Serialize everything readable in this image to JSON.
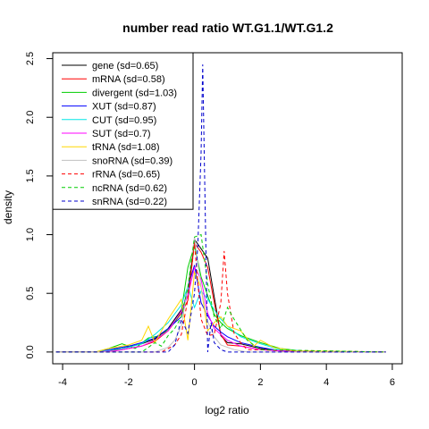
{
  "chart_data": {
    "type": "line",
    "title": "number read ratio WT.G1.1/WT.G1.2",
    "xlabel": "log2 ratio",
    "ylabel": "density",
    "xlim": [
      -4.3,
      6.3
    ],
    "ylim": [
      -0.1,
      2.55
    ],
    "xticks": [
      -4,
      -2,
      0,
      2,
      4,
      6
    ],
    "yticks": [
      0.0,
      0.5,
      1.0,
      1.5,
      2.0,
      2.5
    ],
    "xtick_labels": [
      "-4",
      "-2",
      "0",
      "2",
      "4",
      "6"
    ],
    "ytick_labels": [
      "0.0",
      "0.5",
      "1.0",
      "1.5",
      "2.0",
      "2.5"
    ],
    "grid": false,
    "legend_position": "top-left",
    "series": [
      {
        "name": "gene (sd=0.65)",
        "color": "#000000",
        "dash": "solid",
        "x": [
          -4.2,
          -3.0,
          -2.2,
          -1.6,
          -1.2,
          -0.8,
          -0.4,
          -0.2,
          0.0,
          0.2,
          0.4,
          0.6,
          0.8,
          1.0,
          1.4,
          2.0,
          2.6,
          4.0,
          5.8
        ],
        "y": [
          0,
          0,
          0.03,
          0.07,
          0.11,
          0.2,
          0.36,
          0.48,
          0.96,
          0.88,
          0.8,
          0.47,
          0.14,
          0.08,
          0.07,
          0.03,
          0.01,
          0,
          0
        ]
      },
      {
        "name": "mRNA (sd=0.58)",
        "color": "#ff0000",
        "dash": "solid",
        "x": [
          -4.2,
          -3.0,
          -2.2,
          -1.6,
          -1.2,
          -0.8,
          -0.4,
          -0.2,
          0.0,
          0.2,
          0.4,
          0.6,
          0.8,
          1.0,
          1.4,
          2.0,
          2.6,
          4.0,
          5.8
        ],
        "y": [
          0,
          0,
          0.02,
          0.05,
          0.09,
          0.18,
          0.33,
          0.44,
          0.93,
          0.85,
          0.72,
          0.42,
          0.15,
          0.06,
          0.05,
          0.02,
          0.01,
          0,
          0
        ]
      },
      {
        "name": "divergent (sd=1.03)",
        "color": "#00cd00",
        "dash": "solid",
        "x": [
          -4.2,
          -3.0,
          -2.6,
          -2.2,
          -1.8,
          -1.4,
          -1.0,
          -0.6,
          -0.4,
          -0.2,
          0.0,
          0.2,
          0.4,
          0.6,
          0.8,
          1.0,
          1.4,
          2.0,
          2.6,
          3.2,
          5.8
        ],
        "y": [
          0,
          0,
          0.03,
          0.07,
          0.03,
          0.12,
          0.14,
          0.25,
          0.35,
          0.72,
          0.91,
          0.64,
          0.48,
          0.32,
          0.25,
          0.2,
          0.14,
          0.08,
          0.03,
          0.01,
          0
        ]
      },
      {
        "name": "XUT (sd=0.87)",
        "color": "#0000ff",
        "dash": "solid",
        "x": [
          -4.2,
          -3.0,
          -2.4,
          -2.0,
          -1.6,
          -1.2,
          -0.8,
          -0.4,
          -0.2,
          0.0,
          0.2,
          0.4,
          0.6,
          0.8,
          1.0,
          1.4,
          2.0,
          2.6,
          4.0,
          5.8
        ],
        "y": [
          0,
          0,
          0.03,
          0.05,
          0.08,
          0.12,
          0.2,
          0.3,
          0.55,
          0.74,
          0.42,
          0.31,
          0.22,
          0.17,
          0.13,
          0.08,
          0.04,
          0.01,
          0,
          0
        ]
      },
      {
        "name": "CUT (sd=0.95)",
        "color": "#00e5e5",
        "dash": "solid",
        "x": [
          -4.2,
          -3.0,
          -2.4,
          -2.0,
          -1.6,
          -1.2,
          -0.8,
          -0.4,
          -0.2,
          0.0,
          0.2,
          0.4,
          0.6,
          0.8,
          1.0,
          1.4,
          2.0,
          2.6,
          4.0,
          5.8
        ],
        "y": [
          0,
          0,
          0.02,
          0.04,
          0.07,
          0.15,
          0.25,
          0.4,
          0.56,
          0.38,
          0.52,
          0.45,
          0.36,
          0.28,
          0.22,
          0.13,
          0.07,
          0.02,
          0,
          0
        ]
      },
      {
        "name": "SUT (sd=0.7)",
        "color": "#ff00ff",
        "dash": "solid",
        "x": [
          -4.2,
          -3.0,
          -2.4,
          -2.0,
          -1.6,
          -1.2,
          -0.8,
          -0.4,
          -0.2,
          0.0,
          0.2,
          0.4,
          0.6,
          0.8,
          1.0,
          1.4,
          2.0,
          2.6,
          4.0,
          5.8
        ],
        "y": [
          0,
          0,
          0.01,
          0.03,
          0.05,
          0.1,
          0.18,
          0.35,
          0.48,
          0.72,
          0.62,
          0.33,
          0.2,
          0.15,
          0.1,
          0.05,
          0.02,
          0.01,
          0,
          0
        ]
      },
      {
        "name": "tRNA (sd=1.08)",
        "color": "#ffd700",
        "dash": "solid",
        "x": [
          -4.2,
          -3.0,
          -2.6,
          -2.0,
          -1.6,
          -1.4,
          -1.2,
          -0.8,
          -0.4,
          -0.2,
          0.0,
          0.2,
          0.4,
          0.6,
          0.8,
          1.0,
          1.4,
          1.8,
          2.0,
          2.4,
          3.0,
          5.8
        ],
        "y": [
          0,
          0,
          0.03,
          0.06,
          0.1,
          0.22,
          0.08,
          0.28,
          0.45,
          0.1,
          0.68,
          0.55,
          0.18,
          0.25,
          0.3,
          0.22,
          0.18,
          0.05,
          0.1,
          0.04,
          0.01,
          0
        ]
      },
      {
        "name": "snoRNA (sd=0.39)",
        "color": "#c0c0c0",
        "dash": "solid",
        "x": [
          -4.2,
          -1.2,
          -0.8,
          -0.6,
          -0.4,
          -0.2,
          0.0,
          0.2,
          0.4,
          0.6,
          0.8,
          1.2,
          1.6,
          5.8
        ],
        "y": [
          0,
          0,
          0.04,
          0.1,
          0.22,
          0.56,
          0.98,
          0.55,
          0.26,
          0.13,
          0.06,
          0.02,
          0,
          0
        ]
      },
      {
        "name": "rRNA (sd=0.65)",
        "color": "#ff0000",
        "dash": "dash",
        "x": [
          -4.2,
          -1.0,
          -0.6,
          -0.4,
          -0.2,
          0.0,
          0.2,
          0.4,
          0.6,
          0.8,
          0.9,
          1.0,
          1.2,
          1.4,
          1.6,
          5.8
        ],
        "y": [
          0,
          0,
          0.06,
          0.15,
          0.45,
          0.92,
          0.28,
          0.14,
          0.15,
          0.42,
          0.86,
          0.5,
          0.16,
          0.08,
          0.02,
          0
        ]
      },
      {
        "name": "ncRNA (sd=0.62)",
        "color": "#00cd00",
        "dash": "dash",
        "x": [
          -4.2,
          -1.6,
          -1.2,
          -1.0,
          -0.8,
          -0.6,
          -0.4,
          -0.2,
          0.0,
          0.2,
          0.4,
          0.6,
          0.8,
          1.0,
          1.2,
          1.6,
          2.0,
          5.8
        ],
        "y": [
          0,
          0,
          0.08,
          0.05,
          0.14,
          0.2,
          0.3,
          0.55,
          0.98,
          1.0,
          0.58,
          0.3,
          0.2,
          0.38,
          0.28,
          0.1,
          0.02,
          0
        ]
      },
      {
        "name": "snRNA (sd=0.22)",
        "color": "#0000cd",
        "dash": "dash",
        "x": [
          -4.2,
          -0.8,
          -0.6,
          -0.4,
          -0.2,
          0.0,
          0.1,
          0.2,
          0.25,
          0.3,
          0.4,
          0.5,
          0.6,
          0.8,
          1.0,
          5.8
        ],
        "y": [
          0,
          0,
          0.06,
          0.28,
          0.16,
          0.5,
          0.9,
          1.7,
          2.45,
          1.6,
          0.0,
          0.25,
          0.08,
          0.02,
          0,
          0
        ]
      }
    ]
  }
}
